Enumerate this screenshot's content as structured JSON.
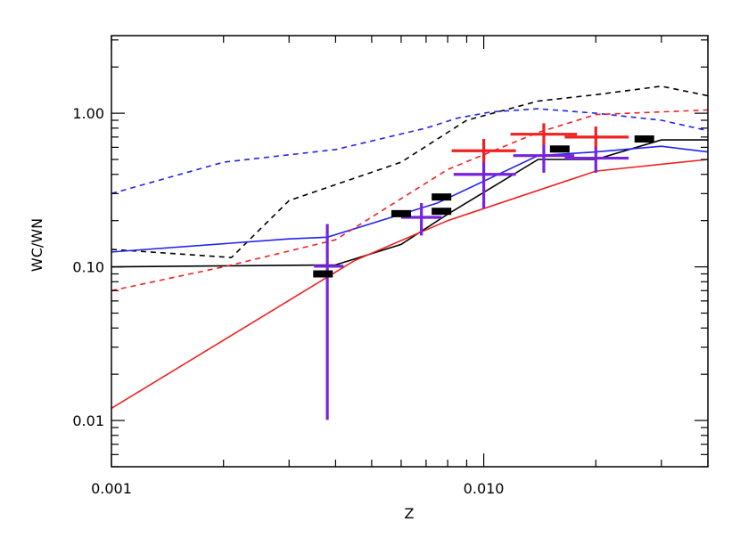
{
  "chart_data": {
    "type": "line",
    "title": "",
    "xlabel": "Z",
    "ylabel": "WC/WN",
    "x_scale": "log",
    "y_scale": "log",
    "xlim": [
      0.001,
      0.04
    ],
    "ylim": [
      0.005,
      3.2
    ],
    "grid": false,
    "legend": "none",
    "x_ticks": [
      {
        "value": 0.001,
        "label": "0.001"
      },
      {
        "value": 0.01,
        "label": "0.010"
      }
    ],
    "y_ticks": [
      {
        "value": 0.01,
        "label": "0.01"
      },
      {
        "value": 0.1,
        "label": "0.10"
      },
      {
        "value": 1.0,
        "label": "1.00"
      }
    ],
    "series": [
      {
        "color": "#000000",
        "dash": "solid",
        "x": [
          0.001,
          0.004,
          0.006,
          0.008,
          0.014,
          0.02,
          0.03,
          0.04
        ],
        "y": [
          0.1,
          0.103,
          0.14,
          0.22,
          0.5,
          0.5,
          0.67,
          0.67
        ]
      },
      {
        "color": "#000000",
        "dash": "dashed",
        "x": [
          0.001,
          0.0021,
          0.003,
          0.006,
          0.009,
          0.014,
          0.02,
          0.03,
          0.04
        ],
        "y": [
          0.13,
          0.115,
          0.27,
          0.48,
          0.9,
          1.2,
          1.32,
          1.5,
          1.3
        ]
      },
      {
        "color": "#2222ee",
        "dash": "solid",
        "x": [
          0.001,
          0.003,
          0.0038,
          0.0075,
          0.014,
          0.02,
          0.03,
          0.04
        ],
        "y": [
          0.125,
          0.152,
          0.156,
          0.26,
          0.53,
          0.56,
          0.61,
          0.56
        ]
      },
      {
        "color": "#2222ee",
        "dash": "dashed",
        "x": [
          0.001,
          0.002,
          0.004,
          0.007,
          0.0085,
          0.0105,
          0.014,
          0.02,
          0.03,
          0.04
        ],
        "y": [
          0.3,
          0.48,
          0.58,
          0.8,
          0.93,
          1.02,
          1.07,
          1.0,
          0.9,
          0.77
        ]
      },
      {
        "color": "#ee2222",
        "dash": "solid",
        "x": [
          0.001,
          0.0045,
          0.008,
          0.02,
          0.04
        ],
        "y": [
          0.012,
          0.11,
          0.2,
          0.42,
          0.5
        ]
      },
      {
        "color": "#ee2222",
        "dash": "dashed",
        "x": [
          0.001,
          0.002,
          0.004,
          0.008,
          0.014,
          0.02,
          0.04
        ],
        "y": [
          0.07,
          0.1,
          0.15,
          0.43,
          0.75,
          0.98,
          1.05
        ]
      }
    ],
    "error_points": [
      {
        "color": "#7722dd",
        "x": 0.0038,
        "y": 0.101,
        "xerr": [
          0.0035,
          0.0042
        ],
        "yerr": [
          0.0101,
          0.19
        ]
      },
      {
        "color": "#7722dd",
        "x": 0.0068,
        "y": 0.21,
        "xerr": [
          0.006,
          0.0077
        ],
        "yerr": [
          0.16,
          0.26
        ]
      },
      {
        "color": "#7722dd",
        "x": 0.01,
        "y": 0.4,
        "xerr": [
          0.0083,
          0.0122
        ],
        "yerr": [
          0.24,
          0.58
        ]
      },
      {
        "color": "#7722dd",
        "x": 0.0145,
        "y": 0.53,
        "xerr": [
          0.012,
          0.0175
        ],
        "yerr": [
          0.41,
          0.63
        ]
      },
      {
        "color": "#7722dd",
        "x": 0.02,
        "y": 0.51,
        "xerr": [
          0.0165,
          0.0245
        ],
        "yerr": [
          0.41,
          0.61
        ]
      },
      {
        "color": "#ee2222",
        "x": 0.01,
        "y": 0.57,
        "xerr": [
          0.0082,
          0.0122
        ],
        "yerr": [
          0.48,
          0.68
        ]
      },
      {
        "color": "#ee2222",
        "x": 0.0145,
        "y": 0.73,
        "xerr": [
          0.0118,
          0.0178
        ],
        "yerr": [
          0.62,
          0.86
        ]
      },
      {
        "color": "#ee2222",
        "x": 0.02,
        "y": 0.7,
        "xerr": [
          0.0165,
          0.0245
        ],
        "yerr": [
          0.6,
          0.82
        ]
      }
    ],
    "black_markers": [
      {
        "x": 0.0037,
        "y": 0.09
      },
      {
        "x": 0.006,
        "y": 0.222
      },
      {
        "x": 0.0077,
        "y": 0.23
      },
      {
        "x": 0.0077,
        "y": 0.285
      },
      {
        "x": 0.016,
        "y": 0.585
      },
      {
        "x": 0.027,
        "y": 0.68
      }
    ]
  }
}
